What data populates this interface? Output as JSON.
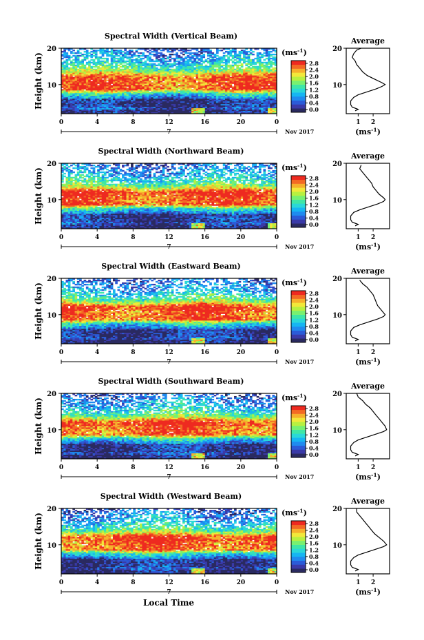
{
  "chart_data": {
    "type": "heatmap",
    "colormap": [
      "#2a2a60",
      "#3a3aa8",
      "#2b5bd8",
      "#1f8bef",
      "#16b6f2",
      "#2ad8d8",
      "#3fe6a6",
      "#78f070",
      "#b8f040",
      "#f2e83a",
      "#f6b02c",
      "#f36a24",
      "#ee2a20"
    ],
    "panels": [
      {
        "title": "Spectral Width (Vertical Beam)",
        "avg_title": "Average",
        "ylabel": "Height (km)",
        "yticks": [
          "20",
          "10"
        ],
        "xticks": [
          "0",
          "4",
          "8",
          "12",
          "16",
          "20",
          "0"
        ],
        "day_label": "7",
        "date_label": "Nov 2017",
        "unit_label": "(ms⁻¹)",
        "cbar_ticks": [
          "2.8",
          "2.4",
          "2.0",
          "1.6",
          "1.2",
          "0.8",
          "0.4",
          "0.0"
        ],
        "avg_xticks": [
          "1",
          "2"
        ],
        "avg_xlabel": "(ms⁻¹)",
        "avg_profile": [
          [
            1.2,
            20
          ],
          [
            0.9,
            19.5
          ],
          [
            0.7,
            18.5
          ],
          [
            0.6,
            17.5
          ],
          [
            0.8,
            16.5
          ],
          [
            0.9,
            15.5
          ],
          [
            1.1,
            14.5
          ],
          [
            1.3,
            13.5
          ],
          [
            1.6,
            12.5
          ],
          [
            2.1,
            11.5
          ],
          [
            2.6,
            10.5
          ],
          [
            2.8,
            10
          ],
          [
            2.6,
            9.5
          ],
          [
            2.2,
            8.8
          ],
          [
            1.6,
            8
          ],
          [
            1.0,
            7.2
          ],
          [
            0.7,
            6.5
          ],
          [
            0.5,
            5.5
          ],
          [
            0.5,
            4.5
          ],
          [
            0.6,
            3.8
          ],
          [
            1.0,
            3.2
          ],
          [
            0.8,
            2.8
          ]
        ]
      },
      {
        "title": "Spectral Width (Northward Beam)",
        "avg_title": "Average",
        "ylabel": "Height (km)",
        "yticks": [
          "20",
          "10"
        ],
        "xticks": [
          "0",
          "4",
          "8",
          "12",
          "16",
          "20",
          "0"
        ],
        "day_label": "7",
        "date_label": "Nov 2017",
        "unit_label": "(ms⁻¹)",
        "cbar_ticks": [
          "2.8",
          "2.4",
          "2.0",
          "1.6",
          "1.2",
          "0.8",
          "0.4",
          "0.0"
        ],
        "avg_xticks": [
          "1",
          "2"
        ],
        "avg_xlabel": "(ms⁻¹)",
        "avg_profile": [
          [
            1.2,
            19.5
          ],
          [
            1.1,
            18.5
          ],
          [
            1.3,
            17.5
          ],
          [
            1.5,
            16.5
          ],
          [
            1.7,
            15.5
          ],
          [
            1.9,
            14.5
          ],
          [
            2.0,
            13.5
          ],
          [
            2.2,
            12.5
          ],
          [
            2.4,
            11.5
          ],
          [
            2.7,
            10.5
          ],
          [
            2.8,
            10
          ],
          [
            2.7,
            9.5
          ],
          [
            2.3,
            8.8
          ],
          [
            1.7,
            8
          ],
          [
            1.1,
            7.2
          ],
          [
            0.7,
            6.5
          ],
          [
            0.5,
            5.5
          ],
          [
            0.5,
            4.5
          ],
          [
            0.6,
            3.8
          ],
          [
            1.0,
            3.2
          ],
          [
            0.8,
            2.8
          ]
        ]
      },
      {
        "title": "Spectral Width (Eastward Beam)",
        "avg_title": "Average",
        "ylabel": "Height (km)",
        "yticks": [
          "20",
          "10"
        ],
        "xticks": [
          "0",
          "4",
          "8",
          "12",
          "16",
          "20",
          "0"
        ],
        "day_label": "7",
        "date_label": "Nov 2017",
        "unit_label": "(ms⁻¹)",
        "cbar_ticks": [
          "2.8",
          "2.4",
          "2.0",
          "1.6",
          "1.2",
          "0.8",
          "0.4",
          "0.0"
        ],
        "avg_xticks": [
          "1",
          "2"
        ],
        "avg_xlabel": "(ms⁻¹)",
        "avg_profile": [
          [
            1.1,
            19.5
          ],
          [
            1.3,
            18.5
          ],
          [
            1.6,
            17.5
          ],
          [
            1.8,
            16.5
          ],
          [
            2.0,
            15.5
          ],
          [
            2.1,
            14.5
          ],
          [
            2.2,
            13.5
          ],
          [
            2.3,
            12.5
          ],
          [
            2.5,
            11.5
          ],
          [
            2.7,
            10.5
          ],
          [
            2.8,
            10
          ],
          [
            2.7,
            9.5
          ],
          [
            2.3,
            8.8
          ],
          [
            1.7,
            8
          ],
          [
            1.1,
            7.2
          ],
          [
            0.7,
            6.5
          ],
          [
            0.5,
            5.5
          ],
          [
            0.5,
            4.5
          ],
          [
            0.6,
            3.8
          ],
          [
            1.0,
            3.2
          ],
          [
            0.8,
            2.8
          ]
        ]
      },
      {
        "title": "Spectral Width (Southward Beam)",
        "avg_title": "Average",
        "ylabel": "Height (km)",
        "yticks": [
          "20",
          "10"
        ],
        "xticks": [
          "0",
          "4",
          "8",
          "12",
          "16",
          "20",
          "0"
        ],
        "day_label": "7",
        "date_label": "Nov 2017",
        "unit_label": "(ms⁻¹)",
        "cbar_ticks": [
          "2.8",
          "2.4",
          "2.0",
          "1.6",
          "1.2",
          "0.8",
          "0.4",
          "0.0"
        ],
        "avg_xticks": [
          "1",
          "2"
        ],
        "avg_xlabel": "(ms⁻¹)",
        "avg_profile": [
          [
            0.9,
            20
          ],
          [
            1.0,
            19
          ],
          [
            1.3,
            18
          ],
          [
            1.5,
            17
          ],
          [
            1.8,
            16
          ],
          [
            2.0,
            15
          ],
          [
            2.2,
            14
          ],
          [
            2.4,
            13
          ],
          [
            2.6,
            12
          ],
          [
            2.8,
            11
          ],
          [
            2.9,
            10
          ],
          [
            2.7,
            9.5
          ],
          [
            2.2,
            8.8
          ],
          [
            1.6,
            8
          ],
          [
            1.0,
            7.2
          ],
          [
            0.7,
            6.5
          ],
          [
            0.5,
            5.5
          ],
          [
            0.5,
            4.5
          ],
          [
            0.6,
            3.8
          ],
          [
            1.0,
            3.2
          ],
          [
            0.8,
            2.8
          ]
        ]
      },
      {
        "title": "Spectral Width (Westward Beam)",
        "avg_title": "Average",
        "ylabel": "Height (km)",
        "yticks": [
          "20",
          "10"
        ],
        "xticks": [
          "0",
          "4",
          "8",
          "12",
          "16",
          "20",
          "0"
        ],
        "day_label": "7",
        "date_label": "Nov 2017",
        "unit_label": "(ms⁻¹)",
        "cbar_ticks": [
          "2.8",
          "2.4",
          "2.0",
          "1.6",
          "1.2",
          "0.8",
          "0.4",
          "0.0"
        ],
        "avg_xticks": [
          "1",
          "2"
        ],
        "avg_xlabel": "(ms⁻¹)",
        "avg_profile": [
          [
            0.9,
            20
          ],
          [
            0.9,
            19
          ],
          [
            1.1,
            18
          ],
          [
            1.3,
            17
          ],
          [
            1.5,
            16
          ],
          [
            1.7,
            15
          ],
          [
            1.9,
            14
          ],
          [
            2.1,
            13
          ],
          [
            2.4,
            12
          ],
          [
            2.7,
            11
          ],
          [
            2.9,
            10
          ],
          [
            2.7,
            9.5
          ],
          [
            2.2,
            8.8
          ],
          [
            1.6,
            8
          ],
          [
            1.0,
            7.2
          ],
          [
            0.7,
            6.5
          ],
          [
            0.5,
            5.5
          ],
          [
            0.5,
            4.5
          ],
          [
            0.6,
            3.8
          ],
          [
            1.0,
            3.2
          ],
          [
            0.8,
            2.8
          ]
        ]
      }
    ],
    "xlabel": "Local Time"
  }
}
